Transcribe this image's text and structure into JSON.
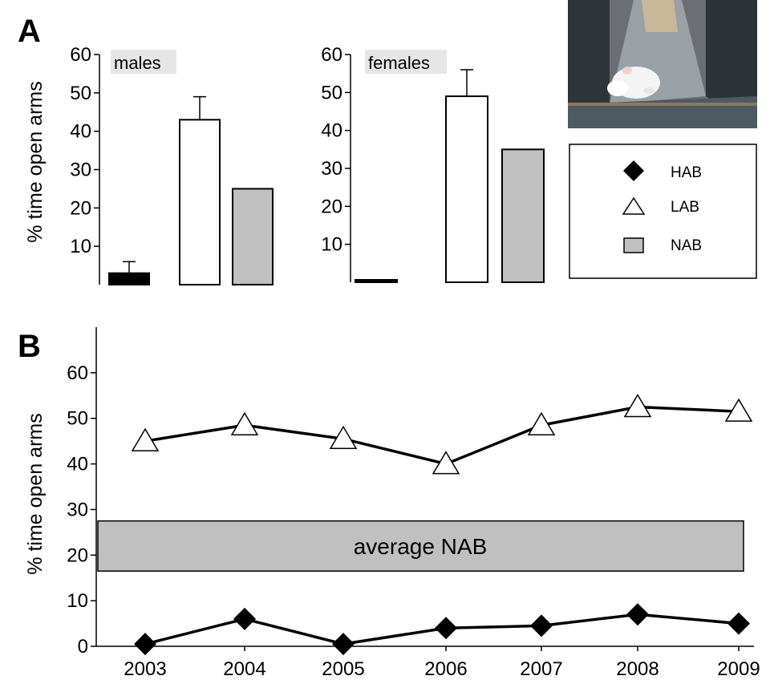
{
  "panels": {
    "a": "A",
    "b": "B"
  },
  "legend": {
    "items": [
      {
        "label": "HAB",
        "marker": "diamond",
        "color": "#000000"
      },
      {
        "label": "LAB",
        "marker": "triangle",
        "color": "#ffffff"
      },
      {
        "label": "NAB",
        "marker": "square",
        "color": "#c0c0c0"
      }
    ]
  },
  "colors": {
    "hab": "#000000",
    "lab": "#ffffff",
    "nab": "#c0c0c0",
    "axis": "#000000",
    "label_bg": "#e6e6e6"
  },
  "photo": {
    "subject": "white rat on elevated plus-maze arm"
  },
  "chart_data": [
    {
      "type": "bar",
      "panel": "A",
      "subtitle": "males",
      "ylabel": "% time open arms",
      "ylim": [
        0,
        60
      ],
      "yticks": [
        10,
        20,
        30,
        40,
        50,
        60
      ],
      "categories": [
        "HAB",
        "LAB",
        "NAB"
      ],
      "values": [
        3,
        43,
        25
      ],
      "errors": [
        3,
        6,
        null
      ],
      "colors": [
        "#000000",
        "#ffffff",
        "#c0c0c0"
      ]
    },
    {
      "type": "bar",
      "panel": "A",
      "subtitle": "females",
      "ylabel": "",
      "ylim": [
        0,
        60
      ],
      "yticks": [
        10,
        20,
        30,
        40,
        50,
        60
      ],
      "categories": [
        "HAB",
        "LAB",
        "NAB"
      ],
      "values": [
        0.5,
        49,
        35
      ],
      "errors": [
        null,
        7,
        null
      ],
      "colors": [
        "#000000",
        "#ffffff",
        "#c0c0c0"
      ]
    },
    {
      "type": "line",
      "panel": "B",
      "ylabel": "% time open arms",
      "ylim": [
        0,
        70
      ],
      "yticks": [
        0,
        10,
        20,
        30,
        40,
        50,
        60
      ],
      "x": [
        "2003",
        "2004",
        "2005",
        "2006",
        "2007",
        "2008",
        "2009"
      ],
      "series": [
        {
          "name": "LAB",
          "marker": "triangle",
          "values": [
            45,
            48.5,
            45.5,
            40,
            48.5,
            52.5,
            51.5
          ]
        },
        {
          "name": "HAB",
          "marker": "diamond",
          "values": [
            0.5,
            6,
            0.5,
            4,
            4.5,
            7,
            5
          ]
        }
      ],
      "band": {
        "label": "average NAB",
        "range": [
          16.5,
          27.5
        ],
        "color": "#c0c0c0"
      }
    }
  ]
}
